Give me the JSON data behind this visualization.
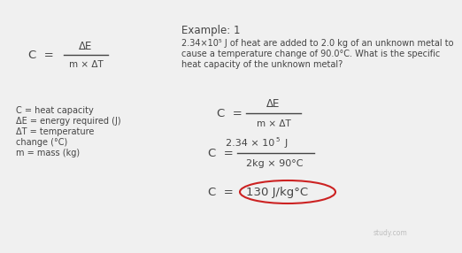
{
  "bg_color": "#f0f0f0",
  "title_example": "Example: 1",
  "problem_line1": "2.34×10⁵ J of heat are added to 2.0 kg of an unknown metal to",
  "problem_line2": "cause a temperature change of 90.0°C. What is the specific",
  "problem_line3": "heat capacity of the unknown metal?",
  "def_line1": "C = heat capacity",
  "def_line2": "ΔE = energy required (J)",
  "def_line3": "ΔT = temperature",
  "def_line4": "change (°C)",
  "def_line5": "m = mass (kg)",
  "circle_color": "#cc2222",
  "text_color": "#444444",
  "fs": 8.5
}
